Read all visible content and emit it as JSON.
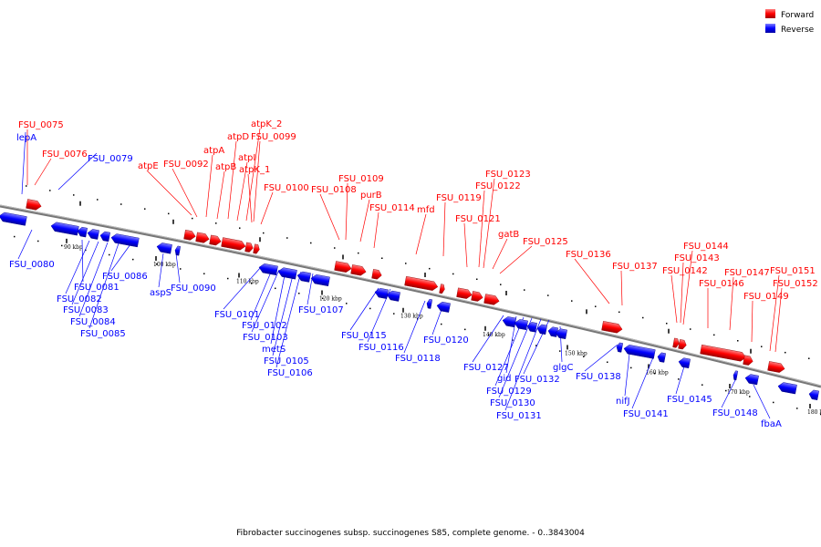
{
  "colors": {
    "forward": "#ff0000",
    "reverse": "#0000ff",
    "backbone": "#888888"
  },
  "legend": {
    "forward": "Forward",
    "reverse": "Reverse"
  },
  "caption": "Fibrobacter succinogenes subsp. succinogenes S85, complete genome. - 0..3843004",
  "ticks": [
    "90 kbp",
    "100 kbp",
    "110 kbp",
    "120 kbp",
    "130 kbp",
    "140 kbp",
    "150 kbp",
    "160 kbp",
    "170 kbp",
    "180 kbp"
  ],
  "forward_genes": [
    "FSU_0075",
    "FSU_0076",
    "atpE",
    "FSU_0092",
    "atpA",
    "atpB",
    "atpD",
    "atpI",
    "atpK_2",
    "FSU_0099",
    "atpK_1",
    "FSU_0100",
    "FSU_0108",
    "FSU_0109",
    "purB",
    "FSU_0114",
    "mfd",
    "FSU_0119",
    "FSU_0121",
    "FSU_0122",
    "FSU_0123",
    "gatB",
    "FSU_0125",
    "FSU_0136",
    "FSU_0137",
    "FSU_0142",
    "FSU_0143",
    "FSU_0144",
    "FSU_0146",
    "FSU_0147",
    "FSU_0149",
    "FSU_0151",
    "FSU_0152"
  ],
  "reverse_genes": [
    "lepA",
    "FSU_0079",
    "FSU_0080",
    "FSU_0081",
    "FSU_0082",
    "FSU_0083",
    "FSU_0084",
    "FSU_0085",
    "FSU_0086",
    "aspS",
    "FSU_0090",
    "FSU_0101",
    "FSU_0102",
    "FSU_0103",
    "metS",
    "FSU_0105",
    "FSU_0106",
    "FSU_0107",
    "FSU_0115",
    "FSU_0116",
    "FSU_0118",
    "FSU_0120",
    "FSU_0127",
    "gid",
    "FSU_0129",
    "FSU_0130",
    "FSU_0131",
    "FSU_0132",
    "glgC",
    "FSU_0138",
    "nifJ",
    "FSU_0141",
    "FSU_0145",
    "FSU_0148",
    "fbaA"
  ]
}
